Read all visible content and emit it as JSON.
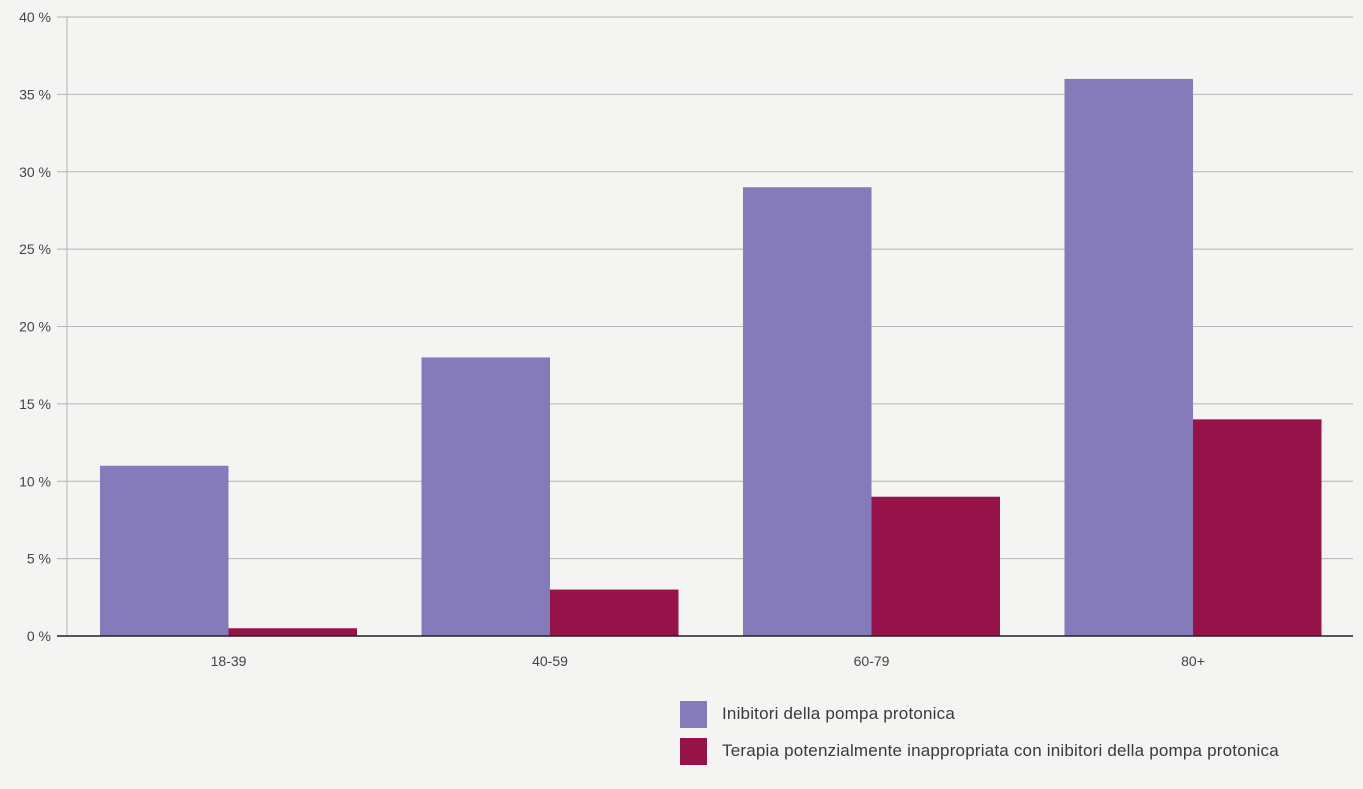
{
  "chart_data": {
    "type": "bar",
    "categories": [
      "18-39",
      "40-59",
      "60-79",
      "80+"
    ],
    "series": [
      {
        "name": "Inibitori della pompa protonica",
        "values": [
          11,
          18,
          29,
          36
        ],
        "color": "#857bbb"
      },
      {
        "name": "Terapia potenzialmente inappropriata con inibitori della pompa protonica",
        "values": [
          0.5,
          3,
          9,
          14
        ],
        "color": "#951348"
      }
    ],
    "ylim": [
      0,
      40
    ],
    "yticks": [
      {
        "value": 0,
        "label": "0 %"
      },
      {
        "value": 5,
        "label": "5 %"
      },
      {
        "value": 10,
        "label": "10 %"
      },
      {
        "value": 15,
        "label": "15 %"
      },
      {
        "value": 20,
        "label": "20 %"
      },
      {
        "value": 25,
        "label": "25 %"
      },
      {
        "value": 30,
        "label": "30 %"
      },
      {
        "value": 35,
        "label": "35 %"
      },
      {
        "value": 40,
        "label": "40 %"
      }
    ],
    "title": "",
    "xlabel": "",
    "ylabel": "",
    "grid": true,
    "legend_position": "bottom-right"
  },
  "colors": {
    "background": "#f4f4f2",
    "gridline": "#b4b4b4",
    "axis": "#222222"
  }
}
